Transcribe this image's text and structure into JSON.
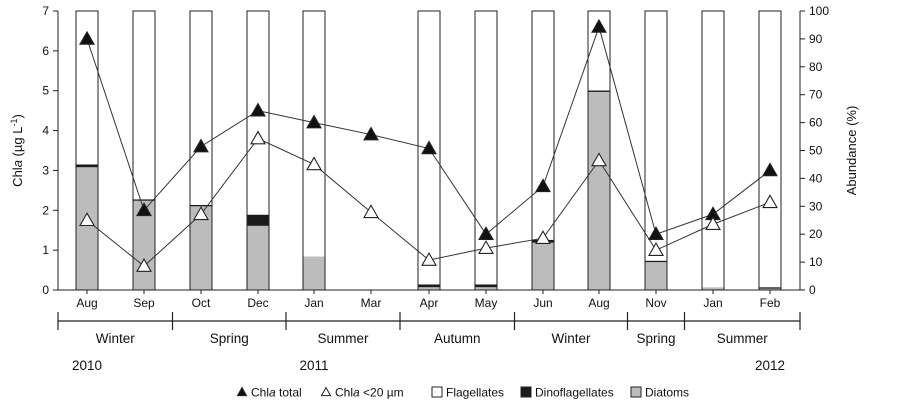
{
  "chart_data": {
    "type": "bar",
    "categories": [
      "Aug",
      "Sep",
      "Oct",
      "Dec",
      "Jan",
      "Mar",
      "Apr",
      "May",
      "Jun",
      "Aug",
      "Nov",
      "Jan",
      "Feb"
    ],
    "left_axis": {
      "label_prefix": "Chl",
      "label_italic": "a",
      "label_suffix": " (µg L",
      "label_sup": "-1",
      "label_close": ")",
      "ylim": [
        0,
        7
      ],
      "ticks": [
        "0",
        "1",
        "2",
        "3",
        "4",
        "5",
        "6",
        "7"
      ]
    },
    "right_axis": {
      "label": "Abundance (%)",
      "ylim": [
        0,
        100
      ],
      "ticks": [
        "0",
        "10",
        "20",
        "30",
        "40",
        "50",
        "60",
        "70",
        "80",
        "90",
        "100"
      ]
    },
    "bars": {
      "unit": "percent",
      "series": [
        {
          "name": "Diatoms",
          "color": "#bcbcbc",
          "values": [
            44,
            32,
            30,
            23,
            12,
            null,
            1,
            1,
            17,
            71,
            10,
            1,
            0.5
          ]
        },
        {
          "name": "Dinoflagellates",
          "color": "#1a1a1a",
          "values": [
            1,
            0.5,
            0.5,
            4,
            0,
            null,
            1,
            1,
            1,
            0.5,
            0.5,
            0,
            0.5
          ]
        },
        {
          "name": "Flagellates",
          "color": "#ffffff",
          "values": [
            55,
            67.5,
            69.5,
            73,
            88,
            null,
            98,
            98,
            82,
            28.5,
            89.5,
            99,
            99
          ]
        }
      ]
    },
    "lines": [
      {
        "name": "Chl a total",
        "marker": "filled-triangle",
        "axis": "left",
        "values": [
          6.3,
          2.0,
          3.6,
          4.5,
          4.2,
          3.9,
          3.55,
          1.4,
          2.6,
          6.6,
          1.4,
          1.9,
          3.0
        ]
      },
      {
        "name": "Chl a <20 µm",
        "marker": "open-triangle",
        "axis": "left",
        "values": [
          1.75,
          0.6,
          1.9,
          3.8,
          3.15,
          1.95,
          0.75,
          1.05,
          1.3,
          3.25,
          1.0,
          1.65,
          2.2
        ]
      }
    ],
    "seasons": [
      {
        "label": "Winter",
        "from": 0,
        "to": 1
      },
      {
        "label": "Spring",
        "from": 2,
        "to": 3
      },
      {
        "label": "Summer",
        "from": 4,
        "to": 5
      },
      {
        "label": "Autumn",
        "from": 6,
        "to": 7
      },
      {
        "label": "Winter",
        "from": 8,
        "to": 9
      },
      {
        "label": "Spring",
        "from": 10,
        "to": 10
      },
      {
        "label": "Summer",
        "from": 11,
        "to": 12
      }
    ],
    "years": [
      {
        "label": "2010",
        "at": 0
      },
      {
        "label": "2011",
        "at": 4
      },
      {
        "label": "2012",
        "at": 12
      }
    ],
    "legend": [
      {
        "label_prefix": "Chl",
        "label_italic": "a",
        "label_suffix": " total",
        "marker": "filled-triangle"
      },
      {
        "label_prefix": "Chl",
        "label_italic": "a",
        "label_suffix": " <20 µm",
        "marker": "open-triangle"
      },
      {
        "label_prefix": "Flagellates",
        "label_italic": "",
        "label_suffix": "",
        "marker": "white-box"
      },
      {
        "label_prefix": "Dinoflagellates",
        "label_italic": "",
        "label_suffix": "",
        "marker": "black-box"
      },
      {
        "label_prefix": "Diatoms",
        "label_italic": "",
        "label_suffix": "",
        "marker": "grey-box"
      }
    ],
    "legend_position": "bottom"
  }
}
